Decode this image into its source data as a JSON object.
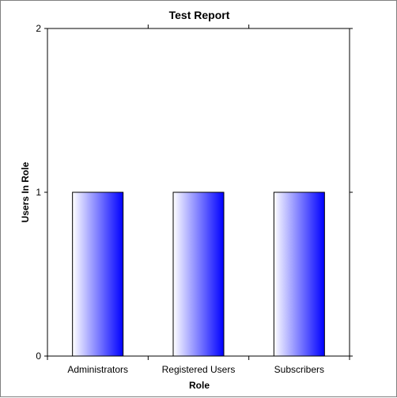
{
  "chart_data": {
    "type": "bar",
    "title": "Test Report",
    "xlabel": "Role",
    "ylabel": "Users In Role",
    "categories": [
      "Administrators",
      "Registered Users",
      "Subscribers"
    ],
    "values": [
      1,
      1,
      1
    ],
    "ylim": [
      0,
      2
    ],
    "yticks": [
      "0",
      "1",
      "2"
    ],
    "grid": false,
    "legend": "none",
    "colors": {
      "bar_gradient_start": "#ffffff",
      "bar_gradient_end": "#0000ff",
      "bar_stroke": "#000000",
      "axis": "#000000",
      "frame": "#808080"
    }
  }
}
